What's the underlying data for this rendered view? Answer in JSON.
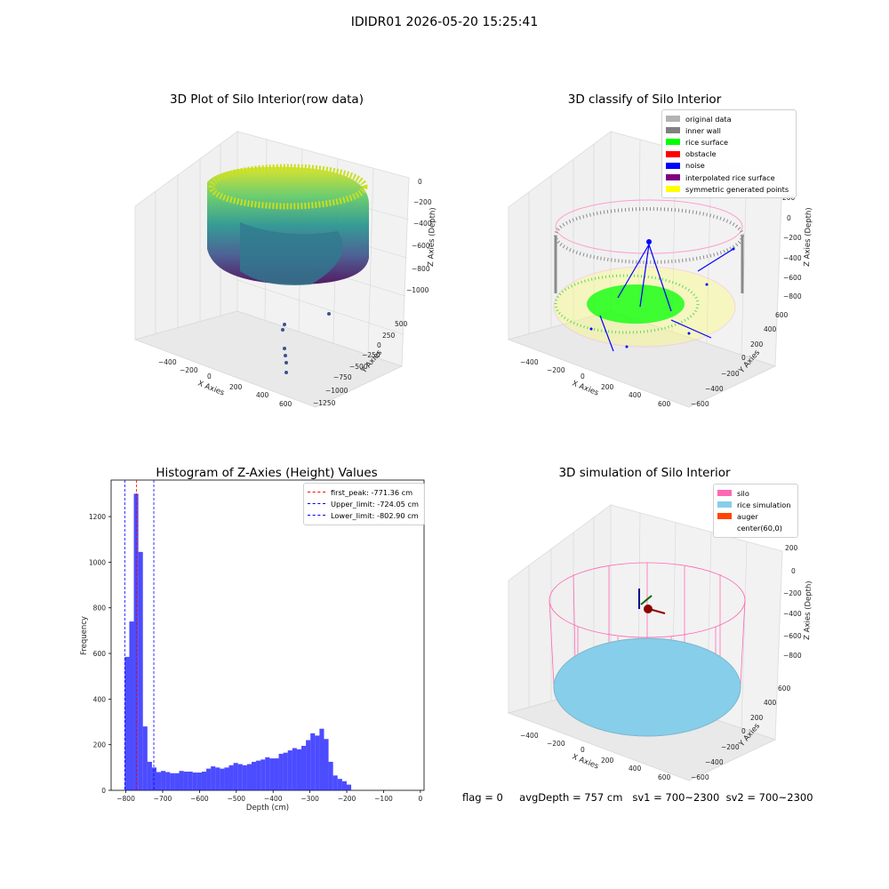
{
  "suptitle": "IDIDR01 2026-05-20 15:25:41",
  "panel1": {
    "title": "3D Plot of Silo Interior(row data)",
    "xlabel": "X Axies",
    "ylabel": "Y Axies",
    "zlabel": "Z Axies (Depth)",
    "xticks": [
      "−400",
      "−200",
      "0",
      "200",
      "400",
      "600"
    ],
    "yticks": [
      "500",
      "250",
      "0",
      "−250",
      "−500",
      "−750",
      "−1000",
      "−1250"
    ],
    "zticks": [
      "0",
      "−200",
      "−400",
      "−600",
      "−800",
      "−1000"
    ]
  },
  "panel2": {
    "title": "3D classify of Silo Interior",
    "xlabel": "X Axies",
    "ylabel": "Y Axies",
    "zlabel": "Z Axies (Depth)",
    "xticks": [
      "−400",
      "−200",
      "0",
      "200",
      "400",
      "600"
    ],
    "yticks": [
      "600",
      "400",
      "200",
      "0",
      "−200",
      "−400",
      "−600"
    ],
    "zticks": [
      "200",
      "0",
      "−200",
      "−400",
      "−600",
      "−800"
    ],
    "legend": [
      {
        "label": "original data",
        "color": "#b3b3b3"
      },
      {
        "label": "inner wall",
        "color": "#808080"
      },
      {
        "label": "rice surface",
        "color": "#00ff00"
      },
      {
        "label": "obstacle",
        "color": "#ff0000"
      },
      {
        "label": "noise",
        "color": "#0000ff"
      },
      {
        "label": "interpolated rice surface",
        "color": "#800080"
      },
      {
        "label": "symmetric generated points",
        "color": "#ffff00"
      }
    ]
  },
  "panel4": {
    "title": "3D simulation of Silo Interior",
    "xlabel": "X Axies",
    "ylabel": "Y Axies",
    "zlabel": "Z Axies (Depth)",
    "xticks": [
      "−400",
      "−200",
      "0",
      "200",
      "400",
      "600"
    ],
    "yticks": [
      "600",
      "400",
      "200",
      "0",
      "−200",
      "−400",
      "−600"
    ],
    "zticks": [
      "200",
      "0",
      "−200",
      "−400",
      "−600",
      "−800"
    ],
    "legend": [
      {
        "label": "silo",
        "color": "#ff69b4"
      },
      {
        "label": "rice simulation",
        "color": "#87ceeb"
      },
      {
        "label": "auger",
        "color": "#ff4500"
      },
      {
        "label": "center(60,0)",
        "color": "none"
      }
    ]
  },
  "footer": {
    "flag": "flag = 0",
    "avg": "avgDepth = 757 cm",
    "sv1": "sv1 = 700~2300",
    "sv2": "sv2 = 700~2300"
  },
  "chart_data": [
    {
      "type": "bar",
      "title": "Histogram of Z-Axies (Height) Values",
      "xlabel": "Depth (cm)",
      "ylabel": "Frequency",
      "xlim": [
        -840,
        10
      ],
      "ylim": [
        0,
        1360
      ],
      "bin_width": 12.3,
      "bin_start": -802.9,
      "color": "#0000ff",
      "values": [
        585,
        740,
        1300,
        1045,
        280,
        125,
        100,
        80,
        85,
        80,
        75,
        75,
        85,
        82,
        82,
        78,
        78,
        82,
        95,
        105,
        100,
        95,
        100,
        110,
        120,
        115,
        110,
        115,
        125,
        130,
        135,
        145,
        140,
        140,
        160,
        165,
        175,
        185,
        180,
        195,
        220,
        250,
        240,
        270,
        225,
        125,
        65,
        50,
        40,
        25
      ],
      "xticks": [
        -800,
        -700,
        -600,
        -500,
        -400,
        -300,
        -200,
        -100,
        0
      ],
      "yticks": [
        0,
        200,
        400,
        600,
        800,
        1000,
        1200
      ],
      "vlines": [
        {
          "label": "first_peak: -771.36 cm",
          "x": -771.36,
          "color": "#ff0000"
        },
        {
          "label": "Upper_limit: -724.05 cm",
          "x": -724.05,
          "color": "#0000ff"
        },
        {
          "label": "Lower_limit: -802.90 cm",
          "x": -802.9,
          "color": "#0000ff"
        }
      ],
      "legend_position": "upper right"
    }
  ]
}
